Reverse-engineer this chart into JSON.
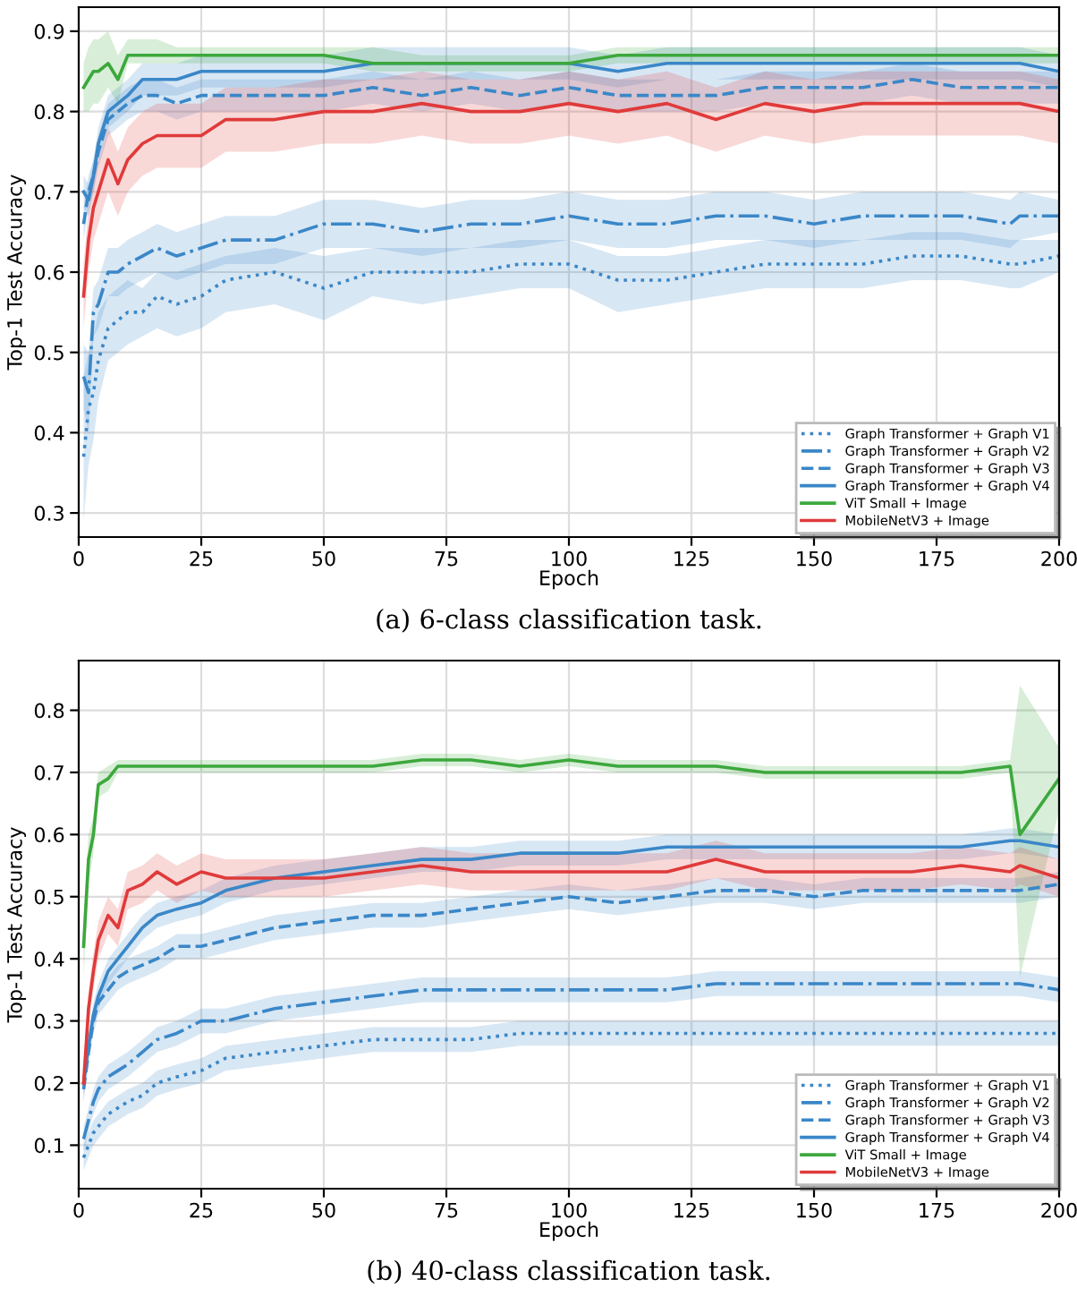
{
  "chart_data": [
    {
      "type": "line",
      "title": "(a) 6-class classification task.",
      "xlabel": "Epoch",
      "ylabel": "Top-1 Test Accuracy",
      "xlim": [
        0,
        200
      ],
      "ylim": [
        0.27,
        0.93
      ],
      "xticks": [
        0,
        25,
        50,
        75,
        100,
        125,
        150,
        175,
        200
      ],
      "yticks": [
        0.3,
        0.4,
        0.5,
        0.6,
        0.7,
        0.8,
        0.9
      ],
      "grid": true,
      "legend": "bottom right",
      "x": [
        1,
        2,
        3,
        4,
        6,
        8,
        10,
        13,
        16,
        20,
        25,
        30,
        40,
        50,
        60,
        70,
        80,
        90,
        100,
        110,
        120,
        130,
        140,
        150,
        160,
        170,
        180,
        190,
        192,
        200
      ],
      "series": [
        {
          "name": "Graph Transformer + Graph V1",
          "color": "#3a87c8",
          "line_style": "dotted",
          "values": [
            0.37,
            0.43,
            0.45,
            0.49,
            0.53,
            0.54,
            0.55,
            0.55,
            0.57,
            0.56,
            0.57,
            0.59,
            0.6,
            0.58,
            0.6,
            0.6,
            0.6,
            0.61,
            0.61,
            0.59,
            0.59,
            0.6,
            0.61,
            0.61,
            0.61,
            0.62,
            0.62,
            0.61,
            0.61,
            0.62
          ],
          "lower": [
            0.29,
            0.36,
            0.39,
            0.44,
            0.49,
            0.5,
            0.51,
            0.52,
            0.53,
            0.52,
            0.53,
            0.55,
            0.56,
            0.54,
            0.57,
            0.56,
            0.57,
            0.58,
            0.58,
            0.55,
            0.56,
            0.57,
            0.58,
            0.58,
            0.58,
            0.59,
            0.59,
            0.58,
            0.58,
            0.6
          ],
          "upper": [
            0.47,
            0.5,
            0.52,
            0.55,
            0.57,
            0.58,
            0.59,
            0.58,
            0.6,
            0.6,
            0.61,
            0.62,
            0.63,
            0.62,
            0.63,
            0.63,
            0.63,
            0.64,
            0.64,
            0.62,
            0.62,
            0.63,
            0.64,
            0.64,
            0.64,
            0.65,
            0.65,
            0.64,
            0.64,
            0.64
          ]
        },
        {
          "name": "Graph Transformer + Graph V2",
          "color": "#3a87c8",
          "line_style": "dashdot",
          "values": [
            0.47,
            0.45,
            0.55,
            0.56,
            0.6,
            0.6,
            0.61,
            0.62,
            0.63,
            0.62,
            0.63,
            0.64,
            0.64,
            0.66,
            0.66,
            0.65,
            0.66,
            0.66,
            0.67,
            0.66,
            0.66,
            0.67,
            0.67,
            0.66,
            0.67,
            0.67,
            0.67,
            0.66,
            0.67,
            0.67
          ],
          "lower": [
            0.43,
            0.4,
            0.52,
            0.53,
            0.57,
            0.57,
            0.58,
            0.59,
            0.6,
            0.59,
            0.6,
            0.61,
            0.61,
            0.63,
            0.63,
            0.62,
            0.63,
            0.63,
            0.64,
            0.63,
            0.63,
            0.64,
            0.64,
            0.63,
            0.64,
            0.64,
            0.64,
            0.63,
            0.64,
            0.65
          ],
          "upper": [
            0.51,
            0.5,
            0.58,
            0.59,
            0.63,
            0.63,
            0.64,
            0.65,
            0.66,
            0.65,
            0.66,
            0.67,
            0.67,
            0.69,
            0.69,
            0.68,
            0.69,
            0.69,
            0.7,
            0.69,
            0.69,
            0.7,
            0.7,
            0.69,
            0.7,
            0.7,
            0.7,
            0.69,
            0.7,
            0.69
          ]
        },
        {
          "name": "Graph Transformer + Graph V3",
          "color": "#3a87c8",
          "line_style": "dashed",
          "values": [
            0.66,
            0.7,
            0.72,
            0.75,
            0.79,
            0.8,
            0.81,
            0.82,
            0.82,
            0.81,
            0.82,
            0.82,
            0.82,
            0.82,
            0.83,
            0.82,
            0.83,
            0.82,
            0.83,
            0.82,
            0.82,
            0.82,
            0.83,
            0.83,
            0.83,
            0.84,
            0.83,
            0.83,
            0.83,
            0.83
          ],
          "lower": [
            0.64,
            0.68,
            0.7,
            0.73,
            0.77,
            0.78,
            0.79,
            0.8,
            0.8,
            0.79,
            0.8,
            0.8,
            0.8,
            0.8,
            0.81,
            0.8,
            0.81,
            0.8,
            0.81,
            0.8,
            0.8,
            0.8,
            0.81,
            0.81,
            0.81,
            0.82,
            0.81,
            0.81,
            0.81,
            0.81
          ],
          "upper": [
            0.68,
            0.72,
            0.74,
            0.77,
            0.81,
            0.82,
            0.83,
            0.84,
            0.84,
            0.83,
            0.84,
            0.84,
            0.84,
            0.84,
            0.85,
            0.84,
            0.85,
            0.84,
            0.85,
            0.84,
            0.84,
            0.84,
            0.85,
            0.85,
            0.85,
            0.86,
            0.85,
            0.85,
            0.85,
            0.85
          ]
        },
        {
          "name": "Graph Transformer + Graph V4",
          "color": "#3a87c8",
          "line_style": "solid",
          "values": [
            0.7,
            0.69,
            0.72,
            0.76,
            0.8,
            0.81,
            0.82,
            0.84,
            0.84,
            0.84,
            0.85,
            0.85,
            0.85,
            0.85,
            0.86,
            0.86,
            0.86,
            0.86,
            0.86,
            0.85,
            0.86,
            0.86,
            0.86,
            0.86,
            0.86,
            0.86,
            0.86,
            0.86,
            0.86,
            0.85
          ],
          "lower": [
            0.68,
            0.67,
            0.7,
            0.74,
            0.78,
            0.79,
            0.8,
            0.82,
            0.82,
            0.82,
            0.83,
            0.83,
            0.83,
            0.83,
            0.84,
            0.84,
            0.84,
            0.84,
            0.84,
            0.83,
            0.84,
            0.84,
            0.84,
            0.84,
            0.84,
            0.84,
            0.84,
            0.84,
            0.84,
            0.83
          ],
          "upper": [
            0.72,
            0.71,
            0.74,
            0.78,
            0.82,
            0.83,
            0.84,
            0.86,
            0.86,
            0.86,
            0.87,
            0.87,
            0.87,
            0.87,
            0.88,
            0.88,
            0.88,
            0.88,
            0.88,
            0.87,
            0.88,
            0.88,
            0.88,
            0.88,
            0.88,
            0.88,
            0.88,
            0.88,
            0.88,
            0.87
          ]
        },
        {
          "name": "ViT Small + Image",
          "color": "#3ca83c",
          "line_style": "solid",
          "values": [
            0.83,
            0.84,
            0.85,
            0.85,
            0.86,
            0.84,
            0.87,
            0.87,
            0.87,
            0.87,
            0.87,
            0.87,
            0.87,
            0.87,
            0.86,
            0.86,
            0.86,
            0.86,
            0.86,
            0.87,
            0.87,
            0.87,
            0.87,
            0.87,
            0.87,
            0.87,
            0.87,
            0.87,
            0.87,
            0.87
          ],
          "lower": [
            0.8,
            0.8,
            0.81,
            0.81,
            0.83,
            0.81,
            0.86,
            0.86,
            0.86,
            0.86,
            0.86,
            0.86,
            0.86,
            0.86,
            0.85,
            0.85,
            0.85,
            0.85,
            0.85,
            0.86,
            0.86,
            0.86,
            0.86,
            0.86,
            0.86,
            0.86,
            0.86,
            0.86,
            0.86,
            0.86
          ],
          "upper": [
            0.86,
            0.88,
            0.89,
            0.89,
            0.9,
            0.87,
            0.89,
            0.89,
            0.89,
            0.88,
            0.88,
            0.88,
            0.88,
            0.88,
            0.88,
            0.87,
            0.87,
            0.87,
            0.87,
            0.88,
            0.88,
            0.88,
            0.88,
            0.88,
            0.88,
            0.88,
            0.88,
            0.88,
            0.88,
            0.88
          ]
        },
        {
          "name": "MobileNetV3 + Image",
          "color": "#e03a3a",
          "line_style": "solid",
          "values": [
            0.57,
            0.64,
            0.68,
            0.7,
            0.74,
            0.71,
            0.74,
            0.76,
            0.77,
            0.77,
            0.77,
            0.79,
            0.79,
            0.8,
            0.8,
            0.81,
            0.8,
            0.8,
            0.81,
            0.8,
            0.81,
            0.79,
            0.81,
            0.8,
            0.81,
            0.81,
            0.81,
            0.81,
            0.81,
            0.8
          ],
          "lower": [
            0.53,
            0.6,
            0.64,
            0.66,
            0.7,
            0.67,
            0.7,
            0.72,
            0.73,
            0.73,
            0.73,
            0.75,
            0.75,
            0.76,
            0.76,
            0.77,
            0.76,
            0.76,
            0.77,
            0.76,
            0.77,
            0.75,
            0.77,
            0.76,
            0.77,
            0.77,
            0.77,
            0.77,
            0.77,
            0.76
          ],
          "upper": [
            0.61,
            0.68,
            0.72,
            0.74,
            0.78,
            0.75,
            0.78,
            0.8,
            0.81,
            0.81,
            0.81,
            0.83,
            0.83,
            0.84,
            0.84,
            0.85,
            0.84,
            0.84,
            0.85,
            0.84,
            0.85,
            0.83,
            0.85,
            0.84,
            0.85,
            0.85,
            0.85,
            0.85,
            0.85,
            0.84
          ]
        }
      ]
    },
    {
      "type": "line",
      "title": "(b) 40-class classification task.",
      "xlabel": "Epoch",
      "ylabel": "Top-1 Test Accuracy",
      "xlim": [
        0,
        200
      ],
      "ylim": [
        0.03,
        0.88
      ],
      "xticks": [
        0,
        25,
        50,
        75,
        100,
        125,
        150,
        175,
        200
      ],
      "yticks": [
        0.1,
        0.2,
        0.3,
        0.4,
        0.5,
        0.6,
        0.7,
        0.8
      ],
      "grid": true,
      "legend": "bottom right",
      "x": [
        1,
        2,
        3,
        4,
        6,
        8,
        10,
        13,
        16,
        20,
        25,
        30,
        40,
        50,
        60,
        70,
        80,
        90,
        100,
        110,
        120,
        130,
        140,
        150,
        160,
        170,
        180,
        190,
        192,
        200
      ],
      "series": [
        {
          "name": "Graph Transformer + Graph V1",
          "color": "#3a87c8",
          "line_style": "dotted",
          "values": [
            0.08,
            0.1,
            0.12,
            0.13,
            0.15,
            0.16,
            0.17,
            0.18,
            0.2,
            0.21,
            0.22,
            0.24,
            0.25,
            0.26,
            0.27,
            0.27,
            0.27,
            0.28,
            0.28,
            0.28,
            0.28,
            0.28,
            0.28,
            0.28,
            0.28,
            0.28,
            0.28,
            0.28,
            0.28,
            0.28
          ],
          "lower": [
            0.06,
            0.08,
            0.1,
            0.11,
            0.13,
            0.14,
            0.15,
            0.16,
            0.18,
            0.19,
            0.2,
            0.22,
            0.23,
            0.24,
            0.25,
            0.25,
            0.25,
            0.26,
            0.26,
            0.26,
            0.26,
            0.26,
            0.26,
            0.26,
            0.26,
            0.26,
            0.26,
            0.26,
            0.26,
            0.26
          ],
          "upper": [
            0.1,
            0.12,
            0.14,
            0.15,
            0.17,
            0.18,
            0.19,
            0.2,
            0.22,
            0.23,
            0.24,
            0.26,
            0.27,
            0.28,
            0.29,
            0.29,
            0.29,
            0.3,
            0.3,
            0.3,
            0.3,
            0.3,
            0.3,
            0.3,
            0.3,
            0.3,
            0.3,
            0.3,
            0.3,
            0.3
          ]
        },
        {
          "name": "Graph Transformer + Graph V2",
          "color": "#3a87c8",
          "line_style": "dashdot",
          "values": [
            0.11,
            0.14,
            0.17,
            0.19,
            0.21,
            0.22,
            0.23,
            0.25,
            0.27,
            0.28,
            0.3,
            0.3,
            0.32,
            0.33,
            0.34,
            0.35,
            0.35,
            0.35,
            0.35,
            0.35,
            0.35,
            0.36,
            0.36,
            0.36,
            0.36,
            0.36,
            0.36,
            0.36,
            0.36,
            0.35
          ],
          "lower": [
            0.09,
            0.12,
            0.15,
            0.17,
            0.19,
            0.2,
            0.21,
            0.23,
            0.25,
            0.26,
            0.28,
            0.28,
            0.3,
            0.31,
            0.32,
            0.33,
            0.33,
            0.33,
            0.33,
            0.33,
            0.33,
            0.34,
            0.34,
            0.34,
            0.34,
            0.34,
            0.34,
            0.34,
            0.34,
            0.33
          ],
          "upper": [
            0.13,
            0.16,
            0.19,
            0.21,
            0.23,
            0.24,
            0.25,
            0.27,
            0.29,
            0.3,
            0.32,
            0.32,
            0.34,
            0.35,
            0.36,
            0.37,
            0.37,
            0.37,
            0.37,
            0.37,
            0.37,
            0.38,
            0.38,
            0.38,
            0.38,
            0.38,
            0.38,
            0.38,
            0.38,
            0.37
          ]
        },
        {
          "name": "Graph Transformer + Graph V3",
          "color": "#3a87c8",
          "line_style": "dashed",
          "values": [
            0.19,
            0.25,
            0.3,
            0.33,
            0.35,
            0.37,
            0.38,
            0.39,
            0.4,
            0.42,
            0.42,
            0.43,
            0.45,
            0.46,
            0.47,
            0.47,
            0.48,
            0.49,
            0.5,
            0.49,
            0.5,
            0.51,
            0.51,
            0.5,
            0.51,
            0.51,
            0.51,
            0.51,
            0.51,
            0.52
          ],
          "lower": [
            0.17,
            0.23,
            0.28,
            0.31,
            0.33,
            0.35,
            0.36,
            0.37,
            0.38,
            0.4,
            0.4,
            0.41,
            0.43,
            0.44,
            0.45,
            0.45,
            0.46,
            0.47,
            0.48,
            0.47,
            0.48,
            0.49,
            0.49,
            0.48,
            0.49,
            0.49,
            0.49,
            0.49,
            0.49,
            0.5
          ],
          "upper": [
            0.21,
            0.27,
            0.32,
            0.35,
            0.37,
            0.39,
            0.4,
            0.41,
            0.42,
            0.44,
            0.44,
            0.45,
            0.47,
            0.48,
            0.49,
            0.49,
            0.5,
            0.51,
            0.52,
            0.51,
            0.52,
            0.53,
            0.53,
            0.52,
            0.53,
            0.53,
            0.53,
            0.53,
            0.53,
            0.54
          ]
        },
        {
          "name": "Graph Transformer + Graph V4",
          "color": "#3a87c8",
          "line_style": "solid",
          "values": [
            0.2,
            0.26,
            0.31,
            0.34,
            0.38,
            0.4,
            0.42,
            0.45,
            0.47,
            0.48,
            0.49,
            0.51,
            0.53,
            0.54,
            0.55,
            0.56,
            0.56,
            0.57,
            0.57,
            0.57,
            0.58,
            0.58,
            0.58,
            0.58,
            0.58,
            0.58,
            0.58,
            0.59,
            0.59,
            0.58
          ],
          "lower": [
            0.18,
            0.24,
            0.29,
            0.32,
            0.36,
            0.38,
            0.4,
            0.43,
            0.45,
            0.46,
            0.47,
            0.49,
            0.51,
            0.52,
            0.53,
            0.54,
            0.54,
            0.55,
            0.55,
            0.55,
            0.56,
            0.56,
            0.56,
            0.56,
            0.56,
            0.56,
            0.56,
            0.57,
            0.57,
            0.56
          ],
          "upper": [
            0.22,
            0.28,
            0.33,
            0.36,
            0.4,
            0.42,
            0.44,
            0.47,
            0.49,
            0.5,
            0.51,
            0.53,
            0.55,
            0.56,
            0.57,
            0.58,
            0.58,
            0.59,
            0.59,
            0.59,
            0.6,
            0.6,
            0.6,
            0.6,
            0.6,
            0.6,
            0.6,
            0.61,
            0.61,
            0.6
          ]
        },
        {
          "name": "ViT Small + Image",
          "color": "#3ca83c",
          "line_style": "solid",
          "values": [
            0.42,
            0.56,
            0.6,
            0.68,
            0.69,
            0.71,
            0.71,
            0.71,
            0.71,
            0.71,
            0.71,
            0.71,
            0.71,
            0.71,
            0.71,
            0.72,
            0.72,
            0.71,
            0.72,
            0.71,
            0.71,
            0.71,
            0.7,
            0.7,
            0.7,
            0.7,
            0.7,
            0.71,
            0.6,
            0.69
          ],
          "lower": [
            0.37,
            0.52,
            0.57,
            0.66,
            0.67,
            0.7,
            0.7,
            0.7,
            0.7,
            0.7,
            0.7,
            0.7,
            0.7,
            0.7,
            0.7,
            0.71,
            0.71,
            0.7,
            0.71,
            0.7,
            0.7,
            0.7,
            0.69,
            0.69,
            0.69,
            0.69,
            0.69,
            0.7,
            0.37,
            0.64
          ],
          "upper": [
            0.47,
            0.6,
            0.63,
            0.7,
            0.71,
            0.72,
            0.72,
            0.72,
            0.72,
            0.72,
            0.72,
            0.72,
            0.72,
            0.72,
            0.72,
            0.73,
            0.73,
            0.72,
            0.73,
            0.72,
            0.72,
            0.72,
            0.71,
            0.71,
            0.71,
            0.71,
            0.71,
            0.72,
            0.84,
            0.74
          ]
        },
        {
          "name": "MobileNetV3 + Image",
          "color": "#e03a3a",
          "line_style": "solid",
          "values": [
            0.2,
            0.32,
            0.38,
            0.43,
            0.47,
            0.45,
            0.51,
            0.52,
            0.54,
            0.52,
            0.54,
            0.53,
            0.53,
            0.53,
            0.54,
            0.55,
            0.54,
            0.54,
            0.54,
            0.54,
            0.54,
            0.56,
            0.54,
            0.54,
            0.54,
            0.54,
            0.55,
            0.54,
            0.55,
            0.53
          ],
          "lower": [
            0.17,
            0.29,
            0.35,
            0.4,
            0.44,
            0.42,
            0.48,
            0.49,
            0.51,
            0.49,
            0.51,
            0.5,
            0.5,
            0.5,
            0.51,
            0.52,
            0.51,
            0.51,
            0.51,
            0.51,
            0.51,
            0.53,
            0.51,
            0.51,
            0.51,
            0.51,
            0.52,
            0.51,
            0.52,
            0.5
          ],
          "upper": [
            0.23,
            0.35,
            0.41,
            0.46,
            0.5,
            0.48,
            0.54,
            0.55,
            0.57,
            0.55,
            0.57,
            0.56,
            0.56,
            0.56,
            0.57,
            0.58,
            0.57,
            0.57,
            0.57,
            0.57,
            0.57,
            0.59,
            0.57,
            0.57,
            0.57,
            0.57,
            0.58,
            0.57,
            0.58,
            0.56
          ]
        }
      ]
    }
  ]
}
